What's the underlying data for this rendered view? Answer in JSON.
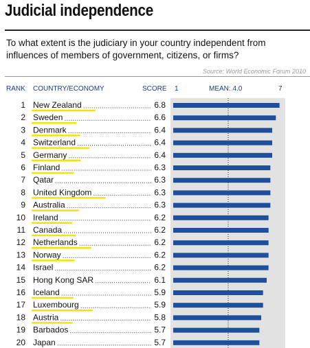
{
  "title": "Judicial independence",
  "question": "To what extent is the judiciary in your country independent from influences of members of government, citizens, or firms?",
  "source": "Source: World Economic Forum 2010",
  "headers": {
    "rank": "RANK",
    "country": "COUNTRY/ECONOMY",
    "score": "SCORE",
    "scale_min": "1",
    "mean": "MEAN: 4.0",
    "scale_max": "7"
  },
  "colors": {
    "bar": "#1f4e9a",
    "panel": "#e2e2e2",
    "highlight": "#f2e20d",
    "header": "#1a3a8a"
  },
  "chart_data": {
    "type": "bar",
    "orientation": "horizontal",
    "xlim": [
      1,
      7
    ],
    "mean": 4.0,
    "rows": [
      {
        "rank": "1",
        "country": "New Zealand",
        "score": 6.8,
        "highlighted": true
      },
      {
        "rank": "2",
        "country": "Sweden",
        "score": 6.6,
        "highlighted": true
      },
      {
        "rank": "3",
        "country": "Denmark",
        "score": 6.4,
        "highlighted": true
      },
      {
        "rank": "4",
        "country": "Switzerland",
        "score": 6.4,
        "highlighted": true
      },
      {
        "rank": "5",
        "country": "Germany",
        "score": 6.4,
        "highlighted": true
      },
      {
        "rank": "6",
        "country": "Finland",
        "score": 6.3,
        "highlighted": true
      },
      {
        "rank": "7",
        "country": "Qatar",
        "score": 6.3,
        "highlighted": false
      },
      {
        "rank": "8",
        "country": "United Kingdom",
        "score": 6.3,
        "highlighted": true
      },
      {
        "rank": "9",
        "country": "Australia",
        "score": 6.3,
        "highlighted": true
      },
      {
        "rank": "10",
        "country": "Ireland",
        "score": 6.2,
        "highlighted": true
      },
      {
        "rank": "11",
        "country": "Canada",
        "score": 6.2,
        "highlighted": true
      },
      {
        "rank": "12",
        "country": "Netherlands",
        "score": 6.2,
        "highlighted": true
      },
      {
        "rank": "13",
        "country": "Norway",
        "score": 6.2,
        "highlighted": true
      },
      {
        "rank": "14",
        "country": "Israel",
        "score": 6.2,
        "highlighted": false
      },
      {
        "rank": "15",
        "country": "Hong Kong SAR",
        "score": 6.1,
        "highlighted": false
      },
      {
        "rank": "16",
        "country": "Iceland",
        "score": 5.9,
        "highlighted": true
      },
      {
        "rank": "17",
        "country": "Luxembourg",
        "score": 5.9,
        "highlighted": true
      },
      {
        "rank": "18",
        "country": "Austria",
        "score": 5.8,
        "highlighted": true
      },
      {
        "rank": "19",
        "country": "Barbados",
        "score": 5.7,
        "highlighted": false
      },
      {
        "rank": "20",
        "country": "Japan",
        "score": 5.7,
        "highlighted": false
      }
    ]
  }
}
